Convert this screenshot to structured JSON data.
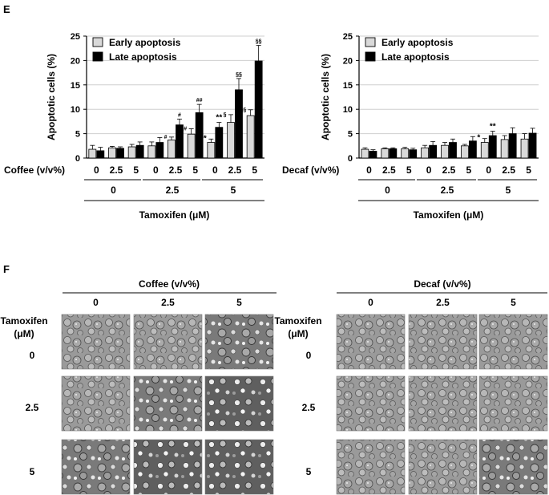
{
  "panel_labels": {
    "e": "E",
    "f": "F"
  },
  "chart_data": [
    {
      "type": "bar",
      "title": "",
      "ylabel": "Apoptotic cells (%)",
      "ylim": [
        0,
        25
      ],
      "yticks": [
        0,
        5,
        10,
        15,
        20,
        25
      ],
      "treatment_label": "Coffee (v/v%)",
      "categories": [
        "0",
        "2.5",
        "5",
        "0",
        "2.5",
        "5",
        "0",
        "2.5",
        "5"
      ],
      "groups": [
        "0",
        "2.5",
        "5"
      ],
      "group_axis_label": "Tamoxifen (μM)",
      "legend": {
        "position": "top-left",
        "entries": [
          "Early apoptosis",
          "Late apoptosis"
        ]
      },
      "series": [
        {
          "name": "Early apoptosis",
          "color": "#d9d9d9",
          "values": [
            1.8,
            2.1,
            2.3,
            2.5,
            3.7,
            4.9,
            3.2,
            7.3,
            8.7
          ],
          "errors": [
            0.8,
            0.3,
            0.5,
            0.8,
            0.6,
            1.1,
            0.7,
            1.6,
            1.2
          ],
          "annotations": [
            "",
            "",
            "",
            "",
            "#",
            "#",
            "*",
            "§",
            "§§"
          ]
        },
        {
          "name": "Late apoptosis",
          "color": "#000000",
          "values": [
            1.5,
            2.0,
            2.6,
            3.2,
            6.8,
            9.3,
            6.3,
            14.0,
            19.9
          ],
          "errors": [
            0.7,
            0.3,
            0.7,
            1.0,
            1.2,
            1.7,
            1.0,
            2.3,
            3.2
          ],
          "annotations": [
            "",
            "",
            "",
            "",
            "#",
            "##",
            "**",
            "§§",
            "§§"
          ]
        }
      ]
    },
    {
      "type": "bar",
      "title": "",
      "ylabel": "Apoptotic cells (%)",
      "ylim": [
        0,
        25
      ],
      "yticks": [
        0,
        5,
        10,
        15,
        20,
        25
      ],
      "treatment_label": "Decaf (v/v%)",
      "categories": [
        "0",
        "2.5",
        "5",
        "0",
        "2.5",
        "5",
        "0",
        "2.5",
        "5"
      ],
      "groups": [
        "0",
        "2.5",
        "5"
      ],
      "group_axis_label": "Tamoxifen (μM)",
      "legend": {
        "position": "top-left",
        "entries": [
          "Early apoptosis",
          "Late apoptosis"
        ]
      },
      "series": [
        {
          "name": "Early apoptosis",
          "color": "#d9d9d9",
          "values": [
            1.8,
            1.9,
            1.9,
            2.1,
            2.6,
            2.5,
            3.2,
            3.8,
            3.9
          ],
          "errors": [
            0.3,
            0.2,
            0.3,
            0.5,
            0.6,
            0.3,
            0.8,
            0.8,
            1.1
          ],
          "annotations": [
            "",
            "",
            "",
            "",
            "",
            "",
            "*",
            "",
            ""
          ]
        },
        {
          "name": "Late apoptosis",
          "color": "#000000",
          "values": [
            1.4,
            1.9,
            1.7,
            2.6,
            3.2,
            3.5,
            4.6,
            5.0,
            5.1
          ],
          "errors": [
            0.3,
            0.2,
            0.3,
            0.8,
            0.7,
            0.9,
            0.9,
            1.2,
            1.0
          ],
          "annotations": [
            "",
            "",
            "",
            "",
            "",
            "",
            "**",
            "",
            ""
          ]
        }
      ]
    }
  ],
  "micrograph_panels": [
    {
      "header": "Coffee (v/v%)",
      "row_title": "Tamoxifen",
      "row_unit": "(μM)",
      "col_labels": [
        "0",
        "2.5",
        "5"
      ],
      "row_labels": [
        "0",
        "2.5",
        "5"
      ]
    },
    {
      "header": "Decaf (v/v%)",
      "row_title": "Tamoxifen",
      "row_unit": "(μM)",
      "col_labels": [
        "0",
        "2.5",
        "5"
      ],
      "row_labels": [
        "0",
        "2.5",
        "5"
      ]
    }
  ]
}
